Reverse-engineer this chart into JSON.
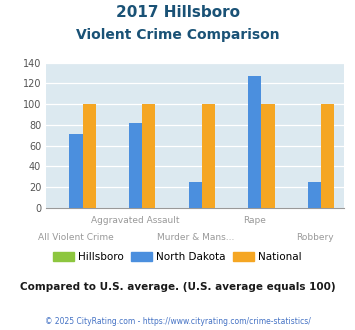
{
  "title_line1": "2017 Hillsboro",
  "title_line2": "Violent Crime Comparison",
  "hillsboro": [
    0,
    0,
    0,
    0,
    0
  ],
  "north_dakota": [
    71,
    82,
    25,
    127,
    25
  ],
  "national": [
    100,
    100,
    100,
    100,
    100
  ],
  "hillsboro_color": "#8dc63f",
  "nd_color": "#4b8fde",
  "national_color": "#f5a623",
  "bg_color": "#dce9f0",
  "ylim": [
    0,
    140
  ],
  "yticks": [
    0,
    20,
    40,
    60,
    80,
    100,
    120,
    140
  ],
  "title_color": "#1a5276",
  "top_labels": [
    "",
    "Aggravated Assault",
    "",
    "Rape",
    ""
  ],
  "bot_labels": [
    "All Violent Crime",
    "",
    "Murder & Mans...",
    "",
    "Robbery"
  ],
  "footer_text": "Compared to U.S. average. (U.S. average equals 100)",
  "copyright_text": "© 2025 CityRating.com - https://www.cityrating.com/crime-statistics/",
  "legend_labels": [
    "Hillsboro",
    "North Dakota",
    "National"
  ]
}
